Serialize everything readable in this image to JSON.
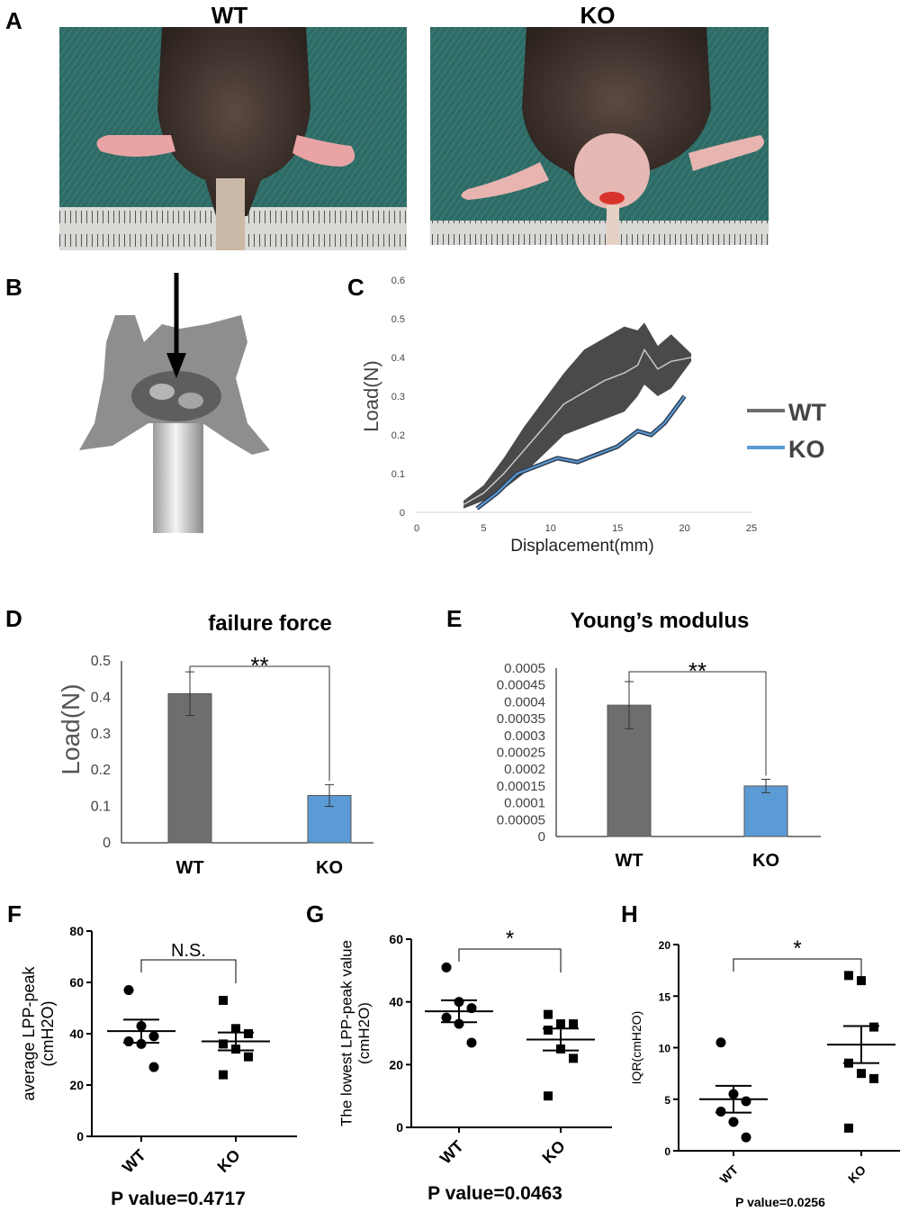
{
  "panel_letters": {
    "A": "A",
    "B": "B",
    "C": "C",
    "D": "D",
    "E": "E",
    "F": "F",
    "G": "G",
    "H": "H"
  },
  "photos": {
    "wt_label": "WT",
    "ko_label": "KO"
  },
  "colors": {
    "wt": "#6e6e6e",
    "ko": "#5b9bd5",
    "band": "#4a4a4a",
    "mat": "#2f6b66"
  },
  "chart_data": [
    {
      "id": "C",
      "type": "line",
      "title": "",
      "xlabel": "Displacement(mm)",
      "ylabel": "Load(N)",
      "xlim": [
        0,
        25
      ],
      "ylim": [
        0,
        0.6
      ],
      "xticks": [
        "0",
        "5",
        "10",
        "15",
        "20",
        "25"
      ],
      "yticks": [
        "0",
        "0.1",
        "0.2",
        "0.3",
        "0.4",
        "0.5",
        "0.6"
      ],
      "legend": [
        "WT",
        "KO"
      ],
      "series": [
        {
          "name": "WT",
          "x": [
            3.5,
            5,
            6.5,
            8,
            9.5,
            11,
            12.5,
            14,
            15.5,
            16.5,
            17,
            18,
            19,
            20.5
          ],
          "y": [
            0.02,
            0.05,
            0.1,
            0.16,
            0.22,
            0.28,
            0.31,
            0.34,
            0.36,
            0.38,
            0.42,
            0.37,
            0.39,
            0.4
          ],
          "band_upper": [
            0.03,
            0.07,
            0.14,
            0.22,
            0.29,
            0.36,
            0.42,
            0.45,
            0.48,
            0.47,
            0.49,
            0.43,
            0.46,
            0.41
          ],
          "band_lower": [
            0.01,
            0.03,
            0.06,
            0.1,
            0.15,
            0.2,
            0.22,
            0.24,
            0.26,
            0.3,
            0.33,
            0.3,
            0.32,
            0.39
          ]
        },
        {
          "name": "KO",
          "x": [
            4.5,
            6,
            7.5,
            9,
            10.5,
            12,
            13.5,
            15,
            16.5,
            17.5,
            18.5,
            20
          ],
          "y": [
            0.01,
            0.05,
            0.1,
            0.12,
            0.14,
            0.13,
            0.15,
            0.17,
            0.21,
            0.2,
            0.23,
            0.3
          ]
        }
      ]
    },
    {
      "id": "D",
      "type": "bar",
      "title": "failure force",
      "ylabel": "Load(N)",
      "categories": [
        "WT",
        "KO"
      ],
      "values": [
        0.41,
        0.13
      ],
      "errors": [
        0.06,
        0.03
      ],
      "ylim": [
        0,
        0.5
      ],
      "yticks": [
        "0",
        "0.1",
        "0.2",
        "0.3",
        "0.4",
        "0.5"
      ],
      "significance": "**"
    },
    {
      "id": "E",
      "type": "bar",
      "title": "Young’s modulus",
      "ylabel": "",
      "categories": [
        "WT",
        "KO"
      ],
      "values": [
        0.00039,
        0.00015
      ],
      "errors": [
        7e-05,
        2e-05
      ],
      "ylim": [
        0,
        0.0005
      ],
      "yticks": [
        "0",
        "0.00005",
        "0.0001",
        "0.00015",
        "0.0002",
        "0.00025",
        "0.0003",
        "0.00035",
        "0.0004",
        "0.00045",
        "0.0005"
      ],
      "significance": "**"
    },
    {
      "id": "F",
      "type": "scatter",
      "ylabel": "average LPP-peak\n(cmH2O)",
      "categories": [
        "WT",
        "KO"
      ],
      "points": [
        [
          57,
          43,
          39,
          37,
          36,
          27
        ],
        [
          53,
          42,
          40,
          36,
          34,
          31,
          24
        ]
      ],
      "means": [
        41,
        37
      ],
      "sem": [
        4.5,
        3.5
      ],
      "ylim": [
        0,
        80
      ],
      "yticks": [
        "0",
        "20",
        "40",
        "60",
        "80"
      ],
      "significance": "N.S.",
      "pvalue": "P value=0.4717"
    },
    {
      "id": "G",
      "type": "scatter",
      "ylabel": "The lowest LPP-peak value\n(cmH2O)",
      "categories": [
        "WT",
        "KO"
      ],
      "points": [
        [
          51,
          40,
          38,
          35,
          33,
          27
        ],
        [
          36,
          33,
          33,
          31,
          25,
          22,
          10
        ]
      ],
      "means": [
        37,
        28
      ],
      "sem": [
        3.5,
        3.5
      ],
      "ylim": [
        0,
        60
      ],
      "yticks": [
        "0",
        "20",
        "40",
        "60"
      ],
      "significance": "*",
      "pvalue": "P value=0.0463"
    },
    {
      "id": "H",
      "type": "scatter",
      "ylabel": "IQR(cmH2O)",
      "categories": [
        "WT",
        "KO"
      ],
      "points": [
        [
          10.5,
          5.5,
          4.8,
          3.8,
          2.8,
          1.3
        ],
        [
          17,
          16.5,
          12,
          8.5,
          7.5,
          7,
          2.2
        ]
      ],
      "means": [
        5,
        10.3
      ],
      "sem": [
        1.3,
        1.8
      ],
      "ylim": [
        0,
        20
      ],
      "yticks": [
        "0",
        "5",
        "10",
        "15",
        "20"
      ],
      "significance": "*",
      "pvalue": "P value=0.0256"
    }
  ]
}
